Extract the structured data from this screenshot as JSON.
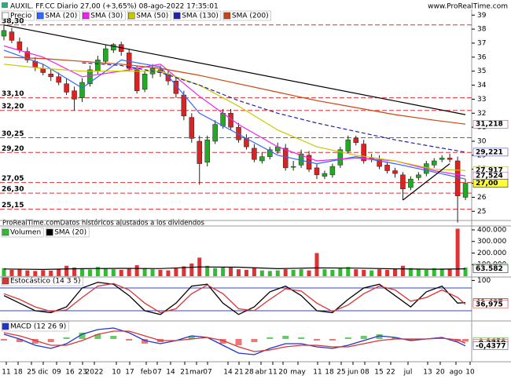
{
  "header": {
    "title": "AUXIL. FF.CC Diario 27,00 (+3,65%) 08-ago-2022 17:35:01",
    "site": "www.ProRealTime.com"
  },
  "footer": "ProRealTime.comDatos históricos ajustados a los dividendos",
  "x_labels": [
    "11",
    "18",
    "25",
    "dic",
    "09",
    "16",
    "23",
    "2022",
    "10",
    "17",
    "feb",
    "07",
    "14",
    "21",
    "mar",
    "07",
    "14",
    "21",
    "28",
    "abr",
    "11",
    "20",
    "may",
    "11",
    "18",
    "25",
    "jun",
    "08",
    "15",
    "22",
    "jul",
    "13",
    "20",
    "ago",
    "10"
  ],
  "chart_data": [
    {
      "type": "candlestick",
      "name": "Precio",
      "open": [
        37.5,
        37.8,
        37.1,
        36.4,
        35.7,
        35.2,
        34.8,
        34.6,
        34.1,
        33.6,
        33.1,
        34.1,
        35.0,
        35.7,
        36.5,
        36.9,
        36.3,
        35.1,
        33.7,
        34.8,
        35.1,
        34.8,
        34.3,
        33.3,
        31.7,
        30.0,
        28.5,
        30.0,
        31.1,
        32.0,
        31.0,
        30.2,
        29.5,
        28.6,
        28.9,
        29.3,
        29.5,
        28.2,
        28.3,
        29.0,
        28.1,
        27.5,
        27.6,
        28.3,
        29.3,
        30.2,
        29.8,
        28.7,
        28.7,
        28.3,
        27.9,
        27.6,
        26.7,
        27.4,
        27.7,
        28.3,
        28.7,
        28.8,
        28.6,
        26.0
      ],
      "high": [
        38.3,
        38.1,
        37.4,
        36.7,
        36.0,
        35.5,
        35.2,
        34.9,
        34.5,
        33.9,
        34.5,
        35.4,
        36.1,
        36.9,
        37.0,
        37.1,
        36.6,
        35.4,
        35.0,
        35.5,
        35.4,
        35.1,
        34.6,
        33.6,
        32.0,
        30.4,
        30.4,
        31.5,
        32.3,
        32.3,
        31.3,
        30.5,
        29.8,
        29.2,
        29.6,
        29.9,
        29.8,
        28.6,
        29.4,
        29.3,
        28.4,
        27.9,
        28.4,
        29.6,
        30.4,
        30.4,
        30.1,
        29.1,
        29.0,
        28.5,
        28.1,
        27.8,
        27.5,
        27.8,
        28.6,
        28.8,
        29.0,
        29.1,
        28.9,
        27.3
      ],
      "low": [
        37.2,
        37.0,
        36.3,
        35.6,
        35.0,
        34.7,
        34.3,
        34.0,
        33.3,
        32.2,
        32.8,
        33.9,
        34.8,
        35.5,
        36.3,
        36.1,
        35.0,
        33.4,
        33.5,
        34.5,
        34.6,
        34.0,
        33.1,
        31.5,
        29.9,
        26.9,
        28.2,
        29.8,
        30.9,
        30.8,
        29.9,
        29.4,
        28.5,
        28.4,
        28.7,
        29.1,
        27.9,
        27.9,
        28.1,
        27.8,
        27.3,
        27.3,
        27.4,
        28.1,
        29.1,
        29.7,
        28.4,
        28.5,
        28.0,
        27.7,
        27.4,
        25.8,
        26.5,
        27.2,
        27.5,
        28.1,
        28.5,
        28.5,
        24.2,
        25.8
      ],
      "close": [
        37.9,
        37.2,
        36.5,
        35.8,
        35.3,
        34.9,
        34.6,
        34.2,
        33.5,
        33.0,
        34.2,
        35.1,
        35.8,
        36.6,
        36.9,
        36.4,
        35.2,
        33.6,
        34.8,
        35.2,
        34.9,
        34.3,
        33.4,
        31.8,
        30.2,
        28.4,
        30.1,
        31.2,
        32.0,
        31.0,
        30.1,
        29.6,
        28.7,
        28.9,
        29.4,
        29.6,
        28.1,
        28.2,
        29.1,
        28.0,
        27.6,
        27.7,
        28.2,
        29.4,
        30.1,
        29.9,
        28.6,
        28.8,
        28.2,
        27.9,
        27.7,
        26.6,
        27.3,
        27.6,
        28.4,
        28.6,
        28.8,
        28.7,
        26.1,
        27.0
      ],
      "series": [
        {
          "name": "SMA (20)",
          "color": "#3366ff",
          "x": [
            0,
            5,
            10,
            15,
            20,
            25,
            30,
            35,
            40,
            45,
            50,
            55,
            59
          ],
          "values": [
            36.5,
            35.5,
            33.8,
            35.8,
            35.3,
            32.0,
            30.5,
            29.0,
            28.4,
            28.9,
            28.4,
            27.8,
            27.3
          ]
        },
        {
          "name": "SMA (30)",
          "color": "#ee22ee",
          "x": [
            0,
            5,
            10,
            15,
            20,
            25,
            30,
            35,
            40,
            45,
            50,
            55,
            59
          ],
          "values": [
            36.8,
            36.0,
            34.6,
            35.0,
            35.5,
            33.2,
            31.2,
            29.6,
            28.6,
            28.8,
            28.6,
            27.9,
            27.524
          ]
        },
        {
          "name": "SMA (50)",
          "color": "#c8c800",
          "x": [
            0,
            5,
            10,
            15,
            20,
            25,
            30,
            35,
            40,
            45,
            50,
            55,
            59
          ],
          "values": [
            35.5,
            35.2,
            35.0,
            35.0,
            35.0,
            34.0,
            32.5,
            30.8,
            29.6,
            29.0,
            28.6,
            28.0,
            27.917
          ]
        },
        {
          "name": "SMA (130)",
          "color": "#2222aa",
          "dash": true,
          "x": [
            0,
            5,
            10,
            15,
            20,
            25,
            30,
            35,
            40,
            45,
            50,
            55,
            59
          ],
          "values": [
            null,
            null,
            35.6,
            35.4,
            34.9,
            34.0,
            32.9,
            32.0,
            31.3,
            30.7,
            30.1,
            29.6,
            29.221
          ]
        },
        {
          "name": "SMA (200)",
          "color": "#cc4411",
          "x": [
            0,
            5,
            10,
            15,
            20,
            25,
            30,
            35,
            40,
            45,
            50,
            55,
            59
          ],
          "values": [
            36.0,
            35.9,
            35.7,
            35.5,
            35.2,
            34.7,
            34.1,
            33.5,
            32.9,
            32.4,
            31.9,
            31.5,
            31.218
          ]
        }
      ],
      "trendlines": [
        {
          "x": [
            0,
            59
          ],
          "values": [
            38.3,
            31.9
          ]
        },
        {
          "x": [
            51,
            57
          ],
          "values": [
            25.8,
            28.4
          ]
        }
      ],
      "levels": [
        {
          "value": 38.3,
          "label": "38,30"
        },
        {
          "value": 33.1,
          "label": "33,10"
        },
        {
          "value": 32.2,
          "label": "32,20"
        },
        {
          "value": 30.25,
          "label": "30,25"
        },
        {
          "value": 29.2,
          "label": "29,20"
        },
        {
          "value": 27.05,
          "label": "27,05"
        },
        {
          "value": 26.3,
          "label": "26,30"
        },
        {
          "value": 25.15,
          "label": "25,15"
        }
      ],
      "last_labels": [
        {
          "value": 31.218,
          "label": "31,218",
          "color": "#cc2222",
          "bg": "#ffffff"
        },
        {
          "value": 29.221,
          "label": "29,221",
          "color": "#2222aa",
          "bg": "#ffffff"
        },
        {
          "value": 27.917,
          "label": "27,917",
          "color": "#a0a000",
          "bg": "#ffffff"
        },
        {
          "value": 27.524,
          "label": "27,524",
          "color": "#dd22dd",
          "bg": "#ffffff"
        },
        {
          "value": 27.0,
          "label": "27,00",
          "color": "#000000",
          "bg": "#ffff33"
        }
      ],
      "ylim": [
        24.4,
        39.35
      ],
      "yticks": [
        25,
        26,
        27,
        28,
        29,
        30,
        31,
        32,
        33,
        34,
        35,
        36,
        37,
        38,
        39
      ]
    },
    {
      "type": "bar",
      "series": [
        {
          "name": "Volumen",
          "values": [
            70000,
            55000,
            60000,
            50000,
            45000,
            52000,
            48000,
            60000,
            90000,
            75000,
            65000,
            58000,
            80000,
            70000,
            60000,
            55000,
            65000,
            95000,
            70000,
            60000,
            55000,
            50000,
            70000,
            85000,
            110000,
            160000,
            90000,
            70000,
            75000,
            80000,
            60000,
            55000,
            70000,
            50000,
            45000,
            50000,
            60000,
            55000,
            60000,
            50000,
            200000,
            60000,
            55000,
            70000,
            80000,
            60000,
            55000,
            50000,
            60000,
            55000,
            65000,
            90000,
            70000,
            60000,
            55000,
            70000,
            65000,
            60000,
            410000,
            75379
          ]
        },
        {
          "name": "SMA (20)",
          "color": "#000000",
          "x": [
            0,
            5,
            10,
            15,
            20,
            25,
            30,
            35,
            40,
            45,
            50,
            55,
            59
          ],
          "values": [
            62000,
            58000,
            65000,
            68000,
            66000,
            80000,
            78000,
            65000,
            72000,
            70000,
            64000,
            60000,
            63582
          ]
        }
      ],
      "last_labels": [
        {
          "value": 75379,
          "label": "75.379",
          "color": "#22aa22",
          "bg": "#ffffff"
        },
        {
          "value": 63582,
          "label": "63.582",
          "color": "#000000",
          "bg": "#ffffff"
        }
      ],
      "ylim": [
        0,
        420000
      ],
      "yticks": [
        {
          "value": 100000,
          "label": "100.000"
        },
        {
          "value": 200000,
          "label": "200.000"
        },
        {
          "value": 300000,
          "label": "300.000"
        },
        {
          "value": 400000,
          "label": "400.000"
        }
      ]
    },
    {
      "type": "line",
      "title": "Estocástico (14 3 5)",
      "x": [
        0,
        2,
        4,
        6,
        8,
        10,
        12,
        14,
        16,
        18,
        20,
        22,
        24,
        26,
        28,
        30,
        32,
        34,
        36,
        38,
        40,
        42,
        44,
        46,
        48,
        50,
        52,
        54,
        56,
        58,
        59
      ],
      "series": [
        {
          "color": "#000000",
          "values": [
            60,
            40,
            20,
            15,
            30,
            80,
            95,
            90,
            60,
            20,
            10,
            40,
            85,
            90,
            40,
            10,
            30,
            70,
            85,
            60,
            20,
            15,
            50,
            80,
            90,
            60,
            30,
            70,
            85,
            40,
            41.497
          ]
        },
        {
          "color": "#dd3333",
          "values": [
            65,
            50,
            30,
            18,
            22,
            55,
            85,
            92,
            75,
            40,
            15,
            25,
            65,
            88,
            65,
            25,
            20,
            50,
            78,
            72,
            40,
            18,
            35,
            65,
            85,
            75,
            45,
            55,
            75,
            55,
            36.975
          ]
        }
      ],
      "bands": [
        20,
        80
      ],
      "last_labels": [
        {
          "value": 41.497,
          "label": "41,497",
          "color": "#000000",
          "bg": "#ffffff"
        },
        {
          "value": 36.975,
          "label": "36,975",
          "color": "#dd3333",
          "bg": "#ffffff"
        }
      ],
      "ylim": [
        -5,
        105
      ],
      "yticks": [
        100
      ]
    },
    {
      "type": "macd",
      "title": "MACD (12 26 9)",
      "x": [
        0,
        2,
        4,
        6,
        8,
        10,
        12,
        14,
        16,
        18,
        20,
        22,
        24,
        26,
        28,
        30,
        32,
        34,
        36,
        38,
        40,
        42,
        44,
        46,
        48,
        50,
        52,
        54,
        56,
        58,
        59
      ],
      "histogram": [
        -0.1,
        -0.2,
        -0.3,
        -0.2,
        0.1,
        0.4,
        0.3,
        0.2,
        -0.1,
        -0.3,
        -0.2,
        0,
        0.2,
        0,
        -0.3,
        -0.4,
        -0.2,
        0.1,
        0.2,
        0.1,
        -0.1,
        -0.1,
        0.1,
        0.2,
        0.3,
        0.1,
        -0.1,
        0,
        0.05,
        -0.15,
        -0.1658
      ],
      "series": [
        {
          "color": "#2233cc",
          "values": [
            0.3,
            0.0,
            -0.4,
            -0.6,
            -0.3,
            0.3,
            0.6,
            0.7,
            0.4,
            -0.1,
            -0.3,
            -0.1,
            0.2,
            0.1,
            -0.4,
            -0.9,
            -1.0,
            -0.6,
            -0.3,
            -0.3,
            -0.5,
            -0.6,
            -0.4,
            -0.1,
            0.2,
            0.1,
            -0.1,
            0.0,
            0.1,
            -0.2,
            -0.4377
          ]
        },
        {
          "color": "#dd3333",
          "values": [
            0.4,
            0.2,
            -0.1,
            -0.4,
            -0.4,
            -0.1,
            0.3,
            0.5,
            0.5,
            0.2,
            -0.1,
            -0.1,
            0.0,
            0.1,
            -0.1,
            -0.5,
            -0.8,
            -0.7,
            -0.5,
            -0.4,
            -0.4,
            -0.5,
            -0.5,
            -0.3,
            -0.1,
            0.0,
            0.0,
            0.0,
            0.05,
            -0.05,
            -0.2719
          ]
        }
      ],
      "last_labels": [
        {
          "value": -0.1658,
          "label": "-0,1658",
          "color": "#22aa22",
          "bg": "#ffffff"
        },
        {
          "value": -0.2719,
          "label": "-0,2719",
          "color": "#dd3333",
          "bg": "#ffffff"
        },
        {
          "value": -0.4377,
          "label": "-0,4377",
          "color": "#2233cc",
          "bg": "#ffffff"
        }
      ],
      "ylim": [
        -1.3,
        1.1
      ],
      "yticks": []
    }
  ]
}
